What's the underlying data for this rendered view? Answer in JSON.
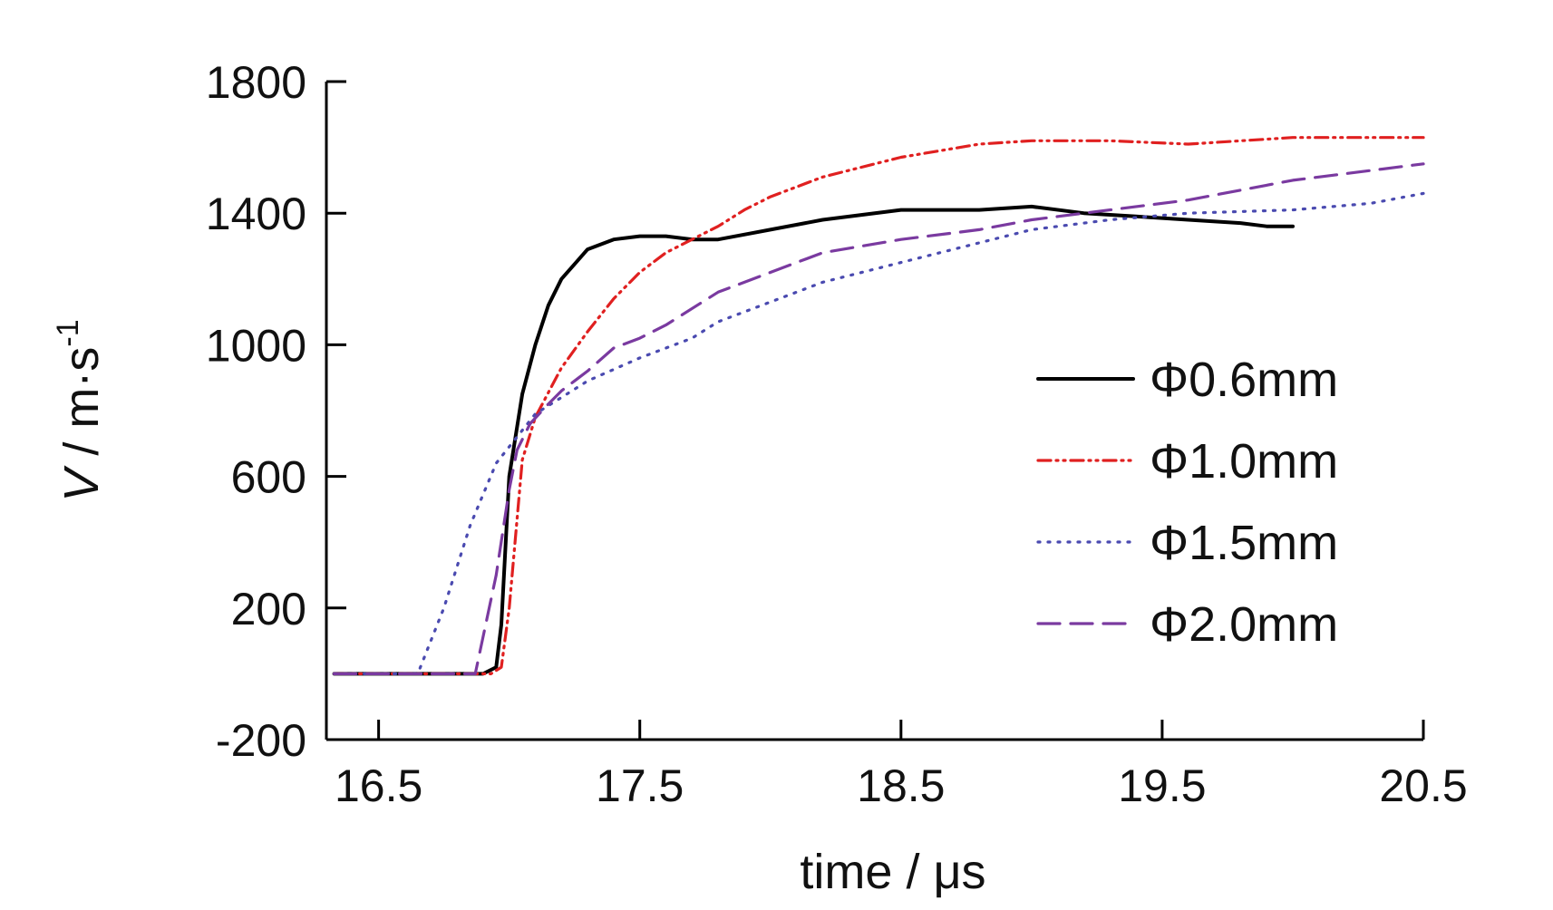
{
  "chart_data": {
    "type": "line",
    "xlabel": "time / μs",
    "ylabel": {
      "symbol": "V",
      "rest": " / m·s",
      "sup": "-1"
    },
    "xlim": [
      16.3,
      20.5
    ],
    "ylim": [
      -200,
      1800
    ],
    "xticks": [
      16.5,
      17.5,
      18.5,
      19.5,
      20.5
    ],
    "yticks": [
      -200,
      200,
      600,
      1000,
      1400,
      1800
    ],
    "xtick_labels": [
      "16.5",
      "17.5",
      "18.5",
      "19.5",
      "20.5"
    ],
    "ytick_labels": [
      "-200",
      "200",
      "600",
      "1000",
      "1400",
      "1800"
    ],
    "grid": false,
    "legend_position": "right",
    "series": [
      {
        "name": "Φ0.6mm",
        "color": "#000000",
        "dash": "solid",
        "x": [
          16.33,
          16.9,
          16.95,
          16.97,
          17.0,
          17.05,
          17.1,
          17.15,
          17.2,
          17.3,
          17.4,
          17.5,
          17.6,
          17.7,
          17.8,
          18.0,
          18.2,
          18.5,
          18.8,
          19.0,
          19.2,
          19.4,
          19.6,
          19.8,
          19.9,
          20.0
        ],
        "y": [
          0,
          0,
          20,
          150,
          600,
          850,
          1000,
          1120,
          1200,
          1290,
          1320,
          1330,
          1330,
          1320,
          1320,
          1350,
          1380,
          1410,
          1410,
          1420,
          1400,
          1390,
          1380,
          1370,
          1360,
          1360
        ]
      },
      {
        "name": "Φ1.0mm",
        "color": "#e02020",
        "dash": "dashdotdot",
        "x": [
          16.33,
          16.93,
          16.97,
          17.0,
          17.05,
          17.1,
          17.2,
          17.3,
          17.4,
          17.5,
          17.6,
          17.7,
          17.8,
          17.9,
          18.0,
          18.2,
          18.5,
          18.8,
          19.0,
          19.3,
          19.6,
          20.0,
          20.5
        ],
        "y": [
          0,
          0,
          20,
          200,
          650,
          780,
          930,
          1040,
          1140,
          1220,
          1280,
          1320,
          1360,
          1410,
          1450,
          1510,
          1570,
          1610,
          1620,
          1620,
          1610,
          1630,
          1630
        ]
      },
      {
        "name": "Φ1.5mm",
        "color": "#4a4ab0",
        "dash": "dotted",
        "x": [
          16.33,
          16.65,
          16.75,
          16.85,
          16.95,
          17.0,
          17.05,
          17.1,
          17.2,
          17.3,
          17.5,
          17.7,
          17.8,
          18.0,
          18.2,
          18.5,
          18.8,
          19.0,
          19.3,
          19.6,
          20.0,
          20.3,
          20.5
        ],
        "y": [
          0,
          0,
          200,
          450,
          640,
          690,
          740,
          790,
          840,
          890,
          960,
          1020,
          1070,
          1130,
          1190,
          1250,
          1310,
          1350,
          1380,
          1400,
          1410,
          1430,
          1460
        ]
      },
      {
        "name": "Φ2.0mm",
        "color": "#7a3aa0",
        "dash": "dashed",
        "x": [
          16.33,
          16.87,
          16.95,
          17.0,
          17.03,
          17.08,
          17.15,
          17.2,
          17.3,
          17.4,
          17.5,
          17.6,
          17.8,
          18.0,
          18.2,
          18.5,
          18.8,
          19.0,
          19.3,
          19.6,
          20.0,
          20.5
        ],
        "y": [
          0,
          0,
          300,
          560,
          680,
          760,
          820,
          860,
          920,
          990,
          1020,
          1060,
          1160,
          1220,
          1280,
          1320,
          1350,
          1380,
          1410,
          1440,
          1500,
          1550
        ]
      }
    ]
  }
}
